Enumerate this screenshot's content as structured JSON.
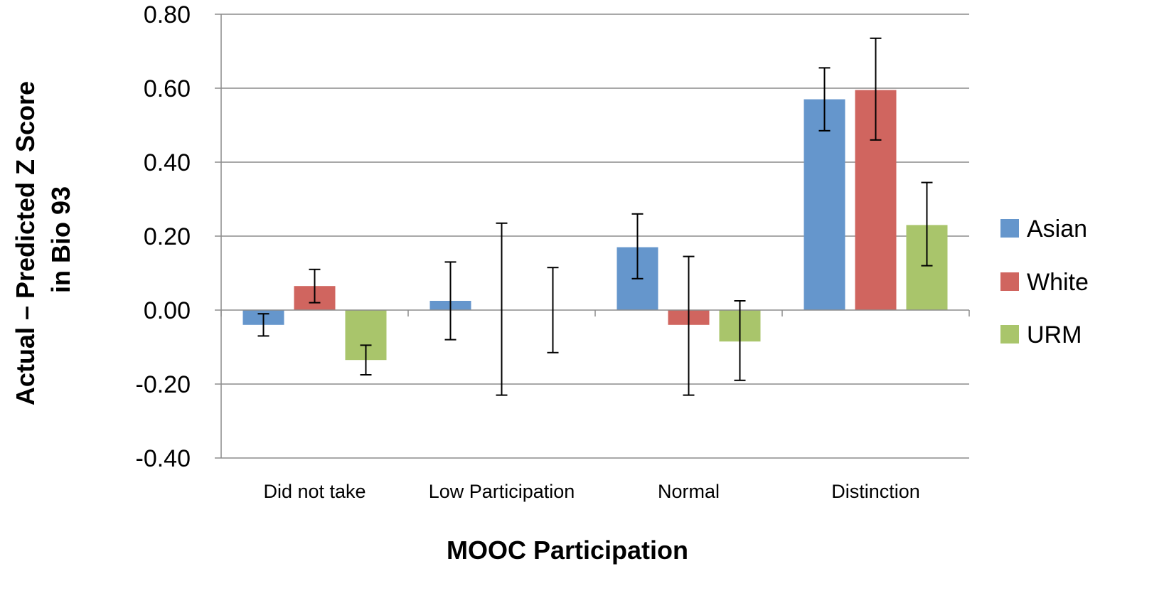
{
  "chart_data": {
    "type": "bar",
    "title": "",
    "xlabel": "MOOC Participation",
    "ylabel_lines": [
      "Actual – Predicted Z Score",
      "in Bio 93"
    ],
    "categories": [
      "Did not take",
      "Low Participation",
      "Normal",
      "Distinction"
    ],
    "ylim": [
      -0.4,
      0.8
    ],
    "yticks": [
      -0.4,
      -0.2,
      0.0,
      0.2,
      0.4,
      0.6,
      0.8
    ],
    "ytick_labels": [
      "-0.40",
      "-0.20",
      "0.00",
      "0.20",
      "0.40",
      "0.60",
      "0.80"
    ],
    "grid": true,
    "legend_position": "right",
    "series": [
      {
        "name": "Asian",
        "color": "#6596CC",
        "values": [
          -0.04,
          0.025,
          0.17,
          0.57
        ],
        "error_low": [
          -0.07,
          -0.08,
          0.085,
          0.485
        ],
        "error_high": [
          -0.01,
          0.13,
          0.26,
          0.655
        ]
      },
      {
        "name": "White",
        "color": "#D0655F",
        "values": [
          0.065,
          0.0,
          -0.04,
          0.595
        ],
        "error_low": [
          0.02,
          -0.23,
          -0.23,
          0.46
        ],
        "error_high": [
          0.11,
          0.235,
          0.145,
          0.735
        ]
      },
      {
        "name": "URM",
        "color": "#A9C56B",
        "values": [
          -0.135,
          0.0,
          -0.085,
          0.23
        ],
        "error_low": [
          -0.175,
          -0.115,
          -0.19,
          0.12
        ],
        "error_high": [
          -0.095,
          0.115,
          0.025,
          0.345
        ]
      }
    ]
  }
}
